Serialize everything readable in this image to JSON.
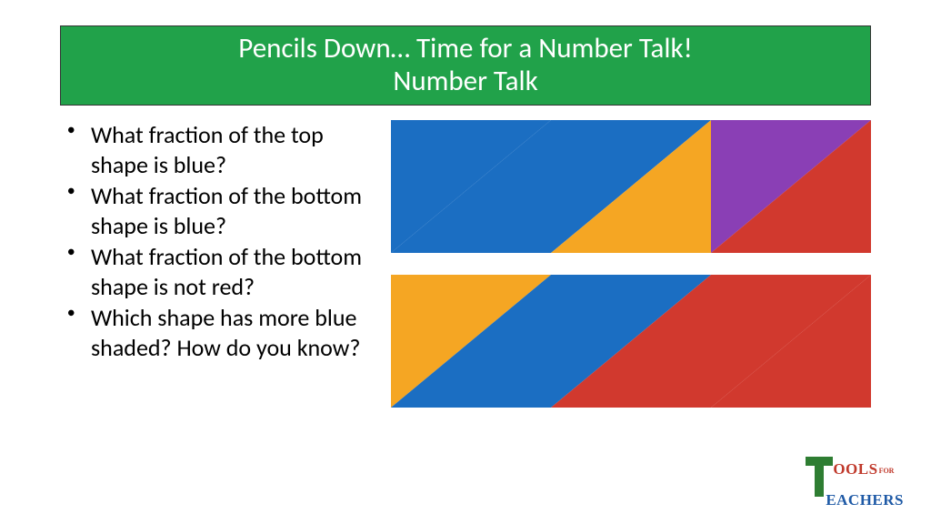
{
  "colors": {
    "title_bg": "#21a24a",
    "title_text": "#ffffff",
    "blue": "#1b6ec2",
    "orange": "#f5a623",
    "red": "#d1392e",
    "purple": "#8a3fb5",
    "logo_green": "#2e7d32",
    "logo_red": "#c0392b",
    "logo_blue": "#1f5aa6"
  },
  "title": {
    "line1": "Pencils Down… Time for a Number Talk!",
    "line2": "Number Talk"
  },
  "questions": [
    "What fraction of the top shape is blue?",
    "What fraction of the bottom shape is blue?",
    "What fraction of the bottom shape is not red?",
    "Which shape has more blue shaded? How do you know?"
  ],
  "shapes": {
    "top": [
      {
        "upper_left": "blue",
        "lower_right": "blue"
      },
      {
        "upper_left": "blue",
        "lower_right": "orange"
      },
      {
        "upper_left": "purple",
        "lower_right": "red"
      }
    ],
    "bottom": [
      {
        "upper_left": "orange",
        "lower_right": "blue"
      },
      {
        "upper_left": "blue",
        "lower_right": "red"
      },
      {
        "upper_left": "red",
        "lower_right": "red"
      }
    ]
  },
  "logo": {
    "ools": "OOLS",
    "for": "FOR",
    "eachers": "EACHERS"
  }
}
